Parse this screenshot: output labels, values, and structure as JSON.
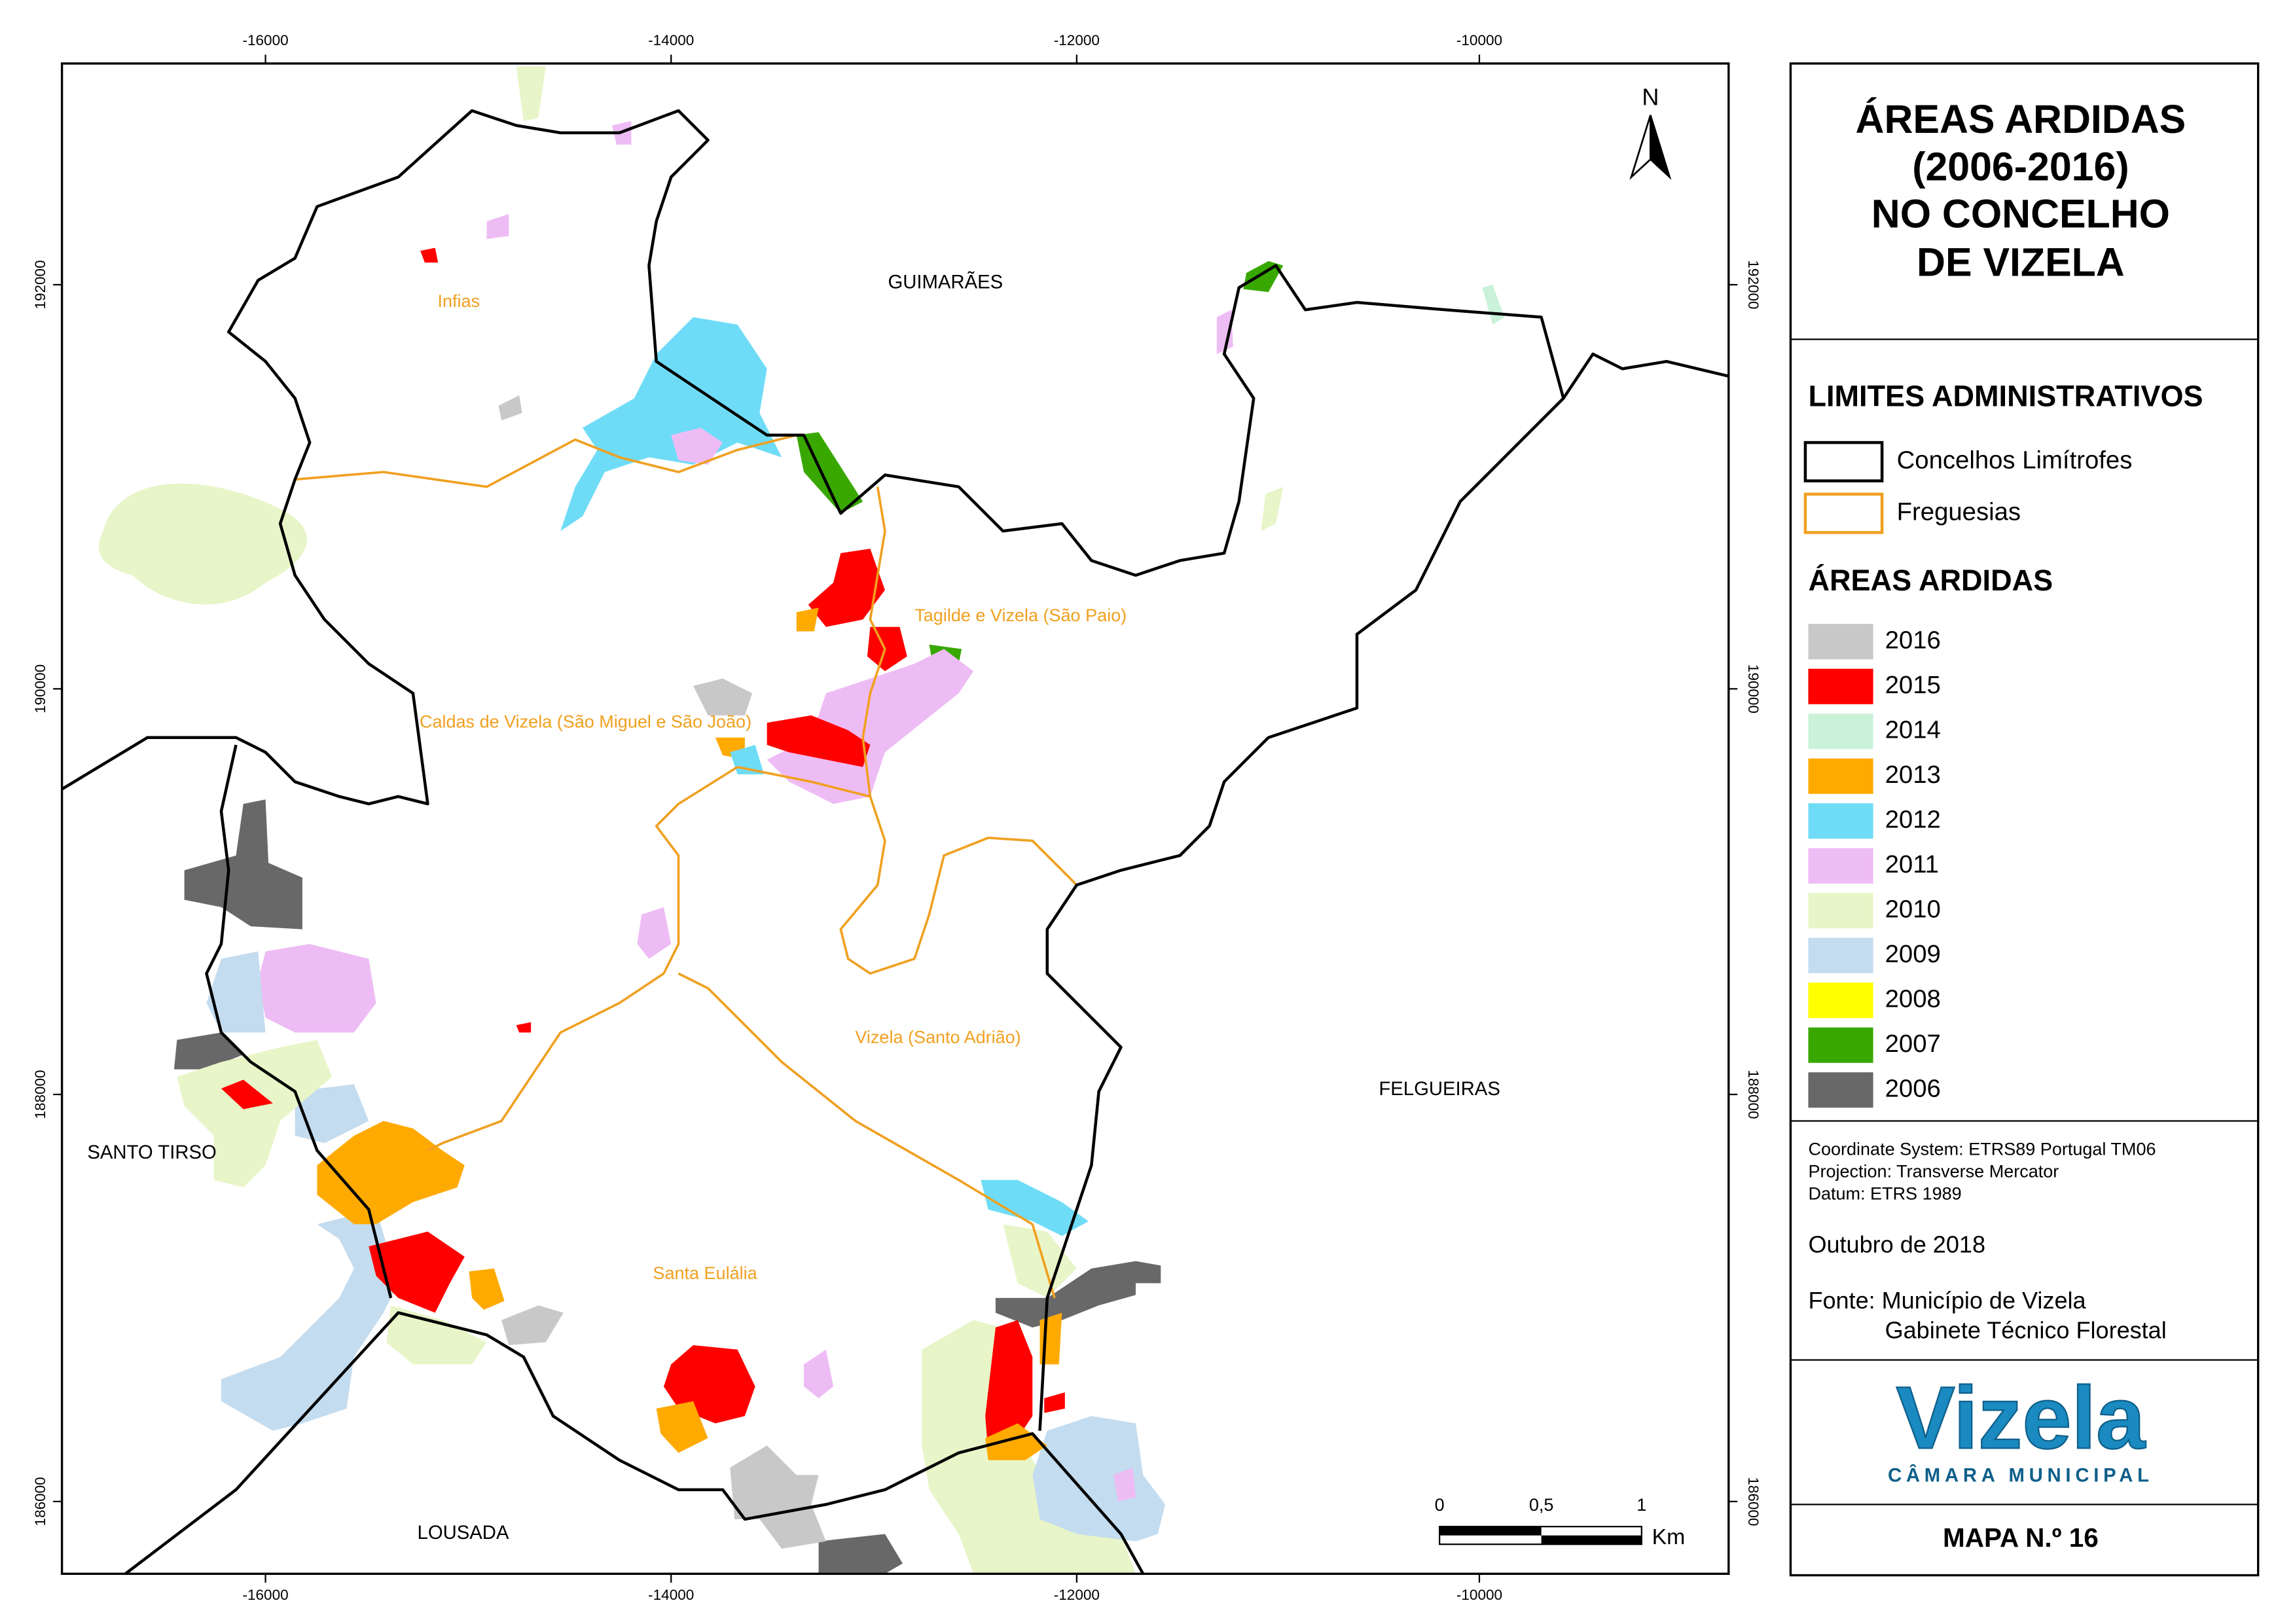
{
  "title": [
    "ÁREAS ARDIDAS",
    "(2006-2016)",
    "NO CONCELHO",
    "DE VIZELA"
  ],
  "north_arrow": "N",
  "grid_labels": {
    "x": [
      "-16000",
      "-14000",
      "-12000",
      "-10000"
    ],
    "y": [
      "192000",
      "190000",
      "188000",
      "186000"
    ]
  },
  "place_labels": {
    "concelhos": [
      "GUIMARÃES",
      "FELGUEIRAS",
      "SANTO TIRSO",
      "LOUSADA"
    ],
    "freguesias": [
      "Infias",
      "Tagilde e Vizela (São Paio)",
      "Caldas de Vizela (São Miguel e São João)",
      "Vizela (Santo Adrião)",
      "Santa Eulália"
    ]
  },
  "legend": {
    "admin_heading": "LIMITES ADMINISTRATIVOS",
    "admin_items": [
      {
        "label": "Concelhos Limítrofes",
        "color": "#000000"
      },
      {
        "label": "Freguesias",
        "color": "#f0a020"
      }
    ],
    "burned_heading": "ÁREAS ARDIDAS",
    "burned_items": [
      {
        "label": "2016",
        "color": "#c8c8c8"
      },
      {
        "label": "2015",
        "color": "#ff0000"
      },
      {
        "label": "2014",
        "color": "#c9f2d9"
      },
      {
        "label": "2013",
        "color": "#ffaa00"
      },
      {
        "label": "2012",
        "color": "#6fdcf7"
      },
      {
        "label": "2011",
        "color": "#eebcf5"
      },
      {
        "label": "2010",
        "color": "#e8f5c8"
      },
      {
        "label": "2009",
        "color": "#c4dcef"
      },
      {
        "label": "2008",
        "color": "#ffff00"
      },
      {
        "label": "2007",
        "color": "#38a800"
      },
      {
        "label": "2006",
        "color": "#686868"
      }
    ]
  },
  "metadata": [
    "Coordinate System: ETRS89 Portugal TM06",
    "Projection: Transverse Mercator",
    "Datum: ETRS 1989"
  ],
  "date": "Outubro de 2018",
  "source": [
    "Fonte: Município de Vizela",
    "Gabinete Técnico Florestal"
  ],
  "logo": {
    "name": "Vizela",
    "subtitle": "CÂMARA MUNICIPAL"
  },
  "scale_bar": {
    "labels": [
      "0",
      "0,5",
      "1"
    ],
    "unit": "Km"
  },
  "map_number": "MAPA N.º 16"
}
